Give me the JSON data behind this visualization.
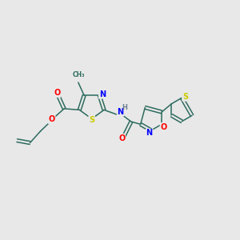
{
  "bg_color": "#e8e8e8",
  "bond_color": "#2d6b5e",
  "atom_colors": {
    "N": "#0000ff",
    "O": "#ff0000",
    "S": "#cccc00",
    "H": "#708090",
    "C": "#2d6b5e"
  },
  "figsize": [
    3.0,
    3.0
  ],
  "dpi": 100
}
